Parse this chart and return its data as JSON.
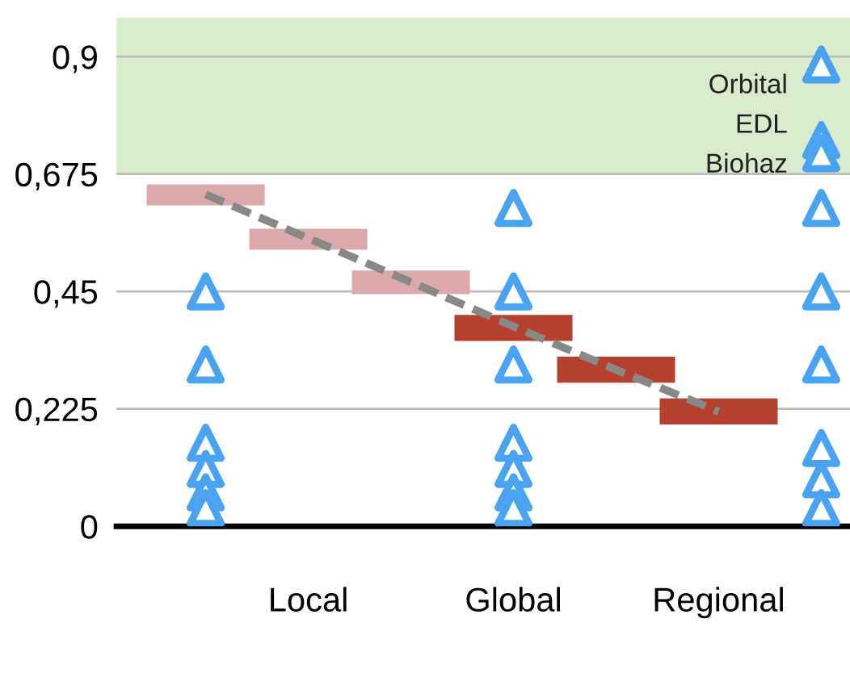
{
  "chart_data": {
    "type": "bar",
    "categories": [
      null,
      "Local",
      null,
      "Global",
      null,
      "Regional",
      null
    ],
    "series": [
      {
        "type": "line",
        "color": "#888888",
        "line_style": "dashed",
        "marker": "none",
        "values": [
          0.636,
          0.552,
          0.468,
          0.383,
          0.3,
          0.22,
          null
        ]
      },
      {
        "colors": [
          "#dba9a9",
          "#dba9a9",
          "#dba9a9",
          "#b5402e",
          "#b5402e",
          "#b5402e",
          "#b5402e"
        ],
        "base": [
          0.615,
          0.53,
          0.445,
          0.355,
          0.275,
          0.195,
          null
        ],
        "values": [
          0.04,
          0.04,
          0.045,
          0.05,
          0.05,
          0.05,
          null
        ]
      },
      {
        "type": "scatter",
        "color": "#4aa3f0",
        "marker": "triangle",
        "values": [
          0.45,
          null,
          null,
          0.61,
          null,
          null,
          0.885
        ]
      },
      {
        "type": "scatter",
        "color": "#4aa3f0",
        "marker": "triangle",
        "values": [
          0.31,
          null,
          null,
          0.45,
          null,
          null,
          0.74
        ]
      },
      {
        "type": "scatter",
        "color": "#4aa3f0",
        "marker": "triangle",
        "values": [
          0.16,
          null,
          null,
          0.31,
          null,
          null,
          0.715
        ]
      },
      {
        "type": "scatter",
        "color": "#4aa3f0",
        "marker": "triangle",
        "values": [
          0.11,
          null,
          null,
          0.16,
          null,
          null,
          0.61
        ]
      },
      {
        "type": "scatter",
        "color": "#4aa3f0",
        "marker": "triangle",
        "values": [
          0.065,
          null,
          null,
          0.11,
          null,
          null,
          0.45
        ]
      },
      {
        "type": "scatter",
        "color": "#4aa3f0",
        "marker": "triangle",
        "values": [
          0.035,
          null,
          null,
          0.065,
          null,
          null,
          0.31
        ]
      },
      {
        "type": "scatter",
        "color": "#4aa3f0",
        "marker": "triangle",
        "values": [
          null,
          null,
          null,
          0.035,
          null,
          null,
          0.15
        ]
      },
      {
        "type": "scatter",
        "color": "#4aa3f0",
        "marker": "triangle",
        "values": [
          null,
          null,
          null,
          null,
          null,
          null,
          0.09
        ]
      },
      {
        "type": "scatter",
        "color": "#4aa3f0",
        "marker": "triangle",
        "values": [
          null,
          null,
          null,
          null,
          null,
          null,
          0.035
        ]
      }
    ],
    "annotations": [
      "Orbital",
      "EDL",
      "Biohaz"
    ],
    "bands": [
      {
        "axis": "y",
        "from": 0.675,
        "to": 0.975,
        "color": "#d9ebcc"
      }
    ],
    "ylim": [
      0,
      0.975
    ],
    "yticks": [
      0,
      {
        "value": 0.225,
        "label": "0,225"
      },
      {
        "value": 0.45,
        "label": "0,45"
      },
      {
        "value": 0.675,
        "label": "0,675"
      },
      {
        "value": 0.9,
        "label": "0,9"
      }
    ],
    "grid": "y",
    "legend": false
  }
}
